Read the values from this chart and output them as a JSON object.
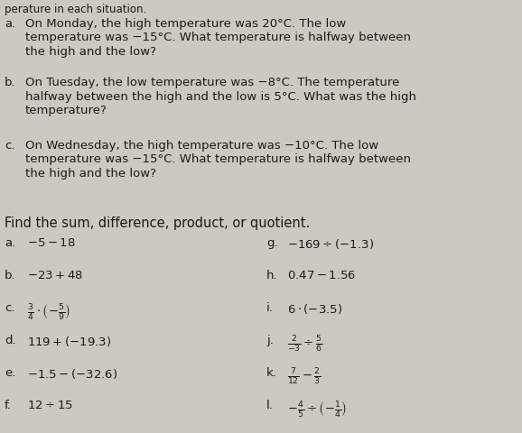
{
  "bg_color": "#cdc9c0",
  "text_color": "#1a1a1a",
  "title_line": "perature in each situation.",
  "s1_labels": [
    "a.",
    "b.",
    "c."
  ],
  "s1_lines": [
    [
      "On Monday, the high temperature was 20°C. The low",
      "temperature was −15°C. What temperature is halfway between",
      "the high and the low?"
    ],
    [
      "On Tuesday, the low temperature was −8°C. The temperature",
      "halfway between the high and the low is 5°C. What was the high",
      "temperature?"
    ],
    [
      "On Wednesday, the high temperature was −10°C. The low",
      "temperature was −15°C. What temperature is halfway between",
      "the high and the low?"
    ]
  ],
  "section2_title": "Find the sum, difference, product, or quotient.",
  "left_labels": [
    "a.",
    "b.",
    "c.",
    "d.",
    "e.",
    "f."
  ],
  "right_labels": [
    "g.",
    "h.",
    "i.",
    "j.",
    "k.",
    "l."
  ]
}
